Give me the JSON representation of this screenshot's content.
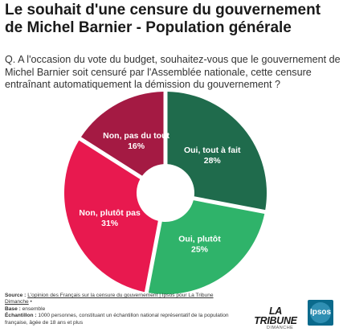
{
  "title": "Le souhait d'une censure du gouvernement de Michel Barnier - Population générale",
  "question": "Q. A l'occasion du vote du budget, souhaitez-vous que le gouvernement de Michel Barnier soit censuré par l'Assemblée nationale, cette censure entraînant automatiquement la démission du gouvernement ?",
  "chart_data": {
    "type": "pie",
    "donut": true,
    "slices": [
      {
        "label": "Oui, tout à fait",
        "value": 28,
        "value_label": "28%",
        "color": "#1f6b4c"
      },
      {
        "label": "Oui, plutôt",
        "value": 25,
        "value_label": "25%",
        "color": "#2fb36a"
      },
      {
        "label": "Non, plutôt pas",
        "value": 31,
        "value_label": "31%",
        "color": "#e8194f"
      },
      {
        "label": "Non, pas du tout",
        "value": 16,
        "value_label": "16%",
        "color": "#a41a43"
      }
    ]
  },
  "footer": {
    "source_label": "Source :",
    "source_text": "L'opinion des Français sur la censure du gouvernement | Ipsos pour La Tribune Dimanche",
    "source_suffix": "•",
    "base_label": "Base :",
    "base_text": "ensemble",
    "sample_label": "Échantillon :",
    "sample_text": "1000 personnes, constituant un échantillon national représentatif de la population française, âgée de 18 ans et plus"
  },
  "logos": {
    "tribune_main": "LA TRIBUNE",
    "tribune_sub": "DIMANCHE",
    "ipsos": "Ipsos"
  }
}
